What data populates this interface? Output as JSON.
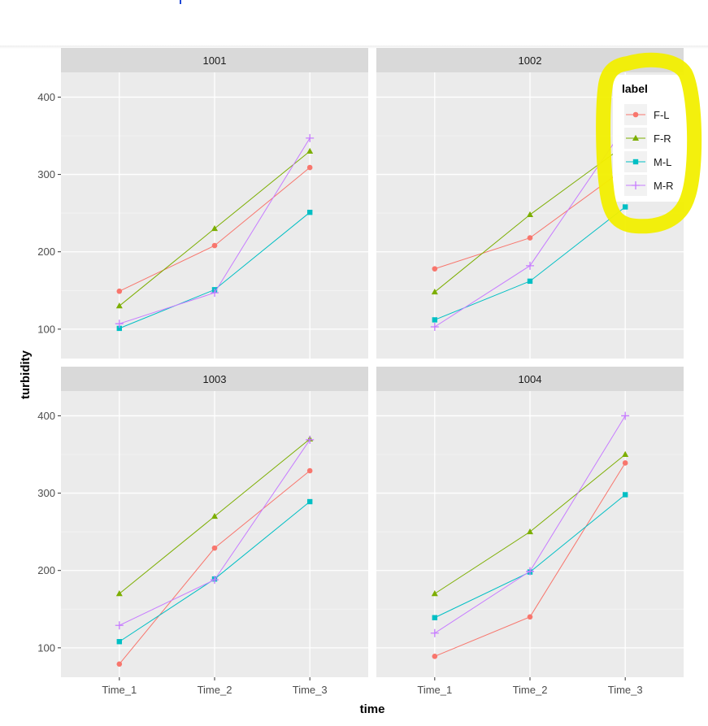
{
  "chart_data": {
    "type": "line",
    "facet_variable": "subject",
    "xlabel": "time",
    "ylabel": "turbidity",
    "categories": [
      "Time_1",
      "Time_2",
      "Time_3"
    ],
    "ylim": [
      62,
      432
    ],
    "yticks": [
      100,
      200,
      300,
      400
    ],
    "grid": true,
    "legend": {
      "title": "label",
      "placement": "inside-top-right of panel 1002",
      "highlight": "yellow hand-drawn circle around legend"
    },
    "series_styles": [
      {
        "name": "F-L",
        "color": "#F8766D",
        "marker": "circle"
      },
      {
        "name": "F-R",
        "color": "#7CAE00",
        "marker": "triangle"
      },
      {
        "name": "M-L",
        "color": "#00BFC4",
        "marker": "square"
      },
      {
        "name": "M-R",
        "color": "#C77CFF",
        "marker": "plus"
      }
    ],
    "panels": [
      {
        "title": "1001",
        "series": [
          {
            "name": "F-L",
            "values": [
              149,
              208,
              309
            ]
          },
          {
            "name": "F-R",
            "values": [
              130,
              230,
              330
            ]
          },
          {
            "name": "M-L",
            "values": [
              101,
              151,
              251
            ]
          },
          {
            "name": "M-R",
            "values": [
              107,
              147,
              347
            ]
          }
        ]
      },
      {
        "title": "1002",
        "series": [
          {
            "name": "F-L",
            "values": [
              178,
              218,
              308
            ]
          },
          {
            "name": "F-R",
            "values": [
              148,
              248,
              338
            ]
          },
          {
            "name": "M-L",
            "values": [
              112,
              162,
              258
            ]
          },
          {
            "name": "M-R",
            "values": [
              103,
              182,
              362
            ]
          }
        ]
      },
      {
        "title": "1003",
        "series": [
          {
            "name": "F-L",
            "values": [
              79,
              229,
              329
            ]
          },
          {
            "name": "F-R",
            "values": [
              170,
              270,
              370
            ]
          },
          {
            "name": "M-L",
            "values": [
              108,
              189,
              289
            ]
          },
          {
            "name": "M-R",
            "values": [
              129,
              188,
              369
            ]
          }
        ]
      },
      {
        "title": "1004",
        "series": [
          {
            "name": "F-L",
            "values": [
              89,
              140,
              339
            ]
          },
          {
            "name": "F-R",
            "values": [
              170,
              250,
              350
            ]
          },
          {
            "name": "M-L",
            "values": [
              139,
              198,
              298
            ]
          },
          {
            "name": "M-R",
            "values": [
              119,
              199,
              400
            ]
          }
        ]
      }
    ]
  }
}
